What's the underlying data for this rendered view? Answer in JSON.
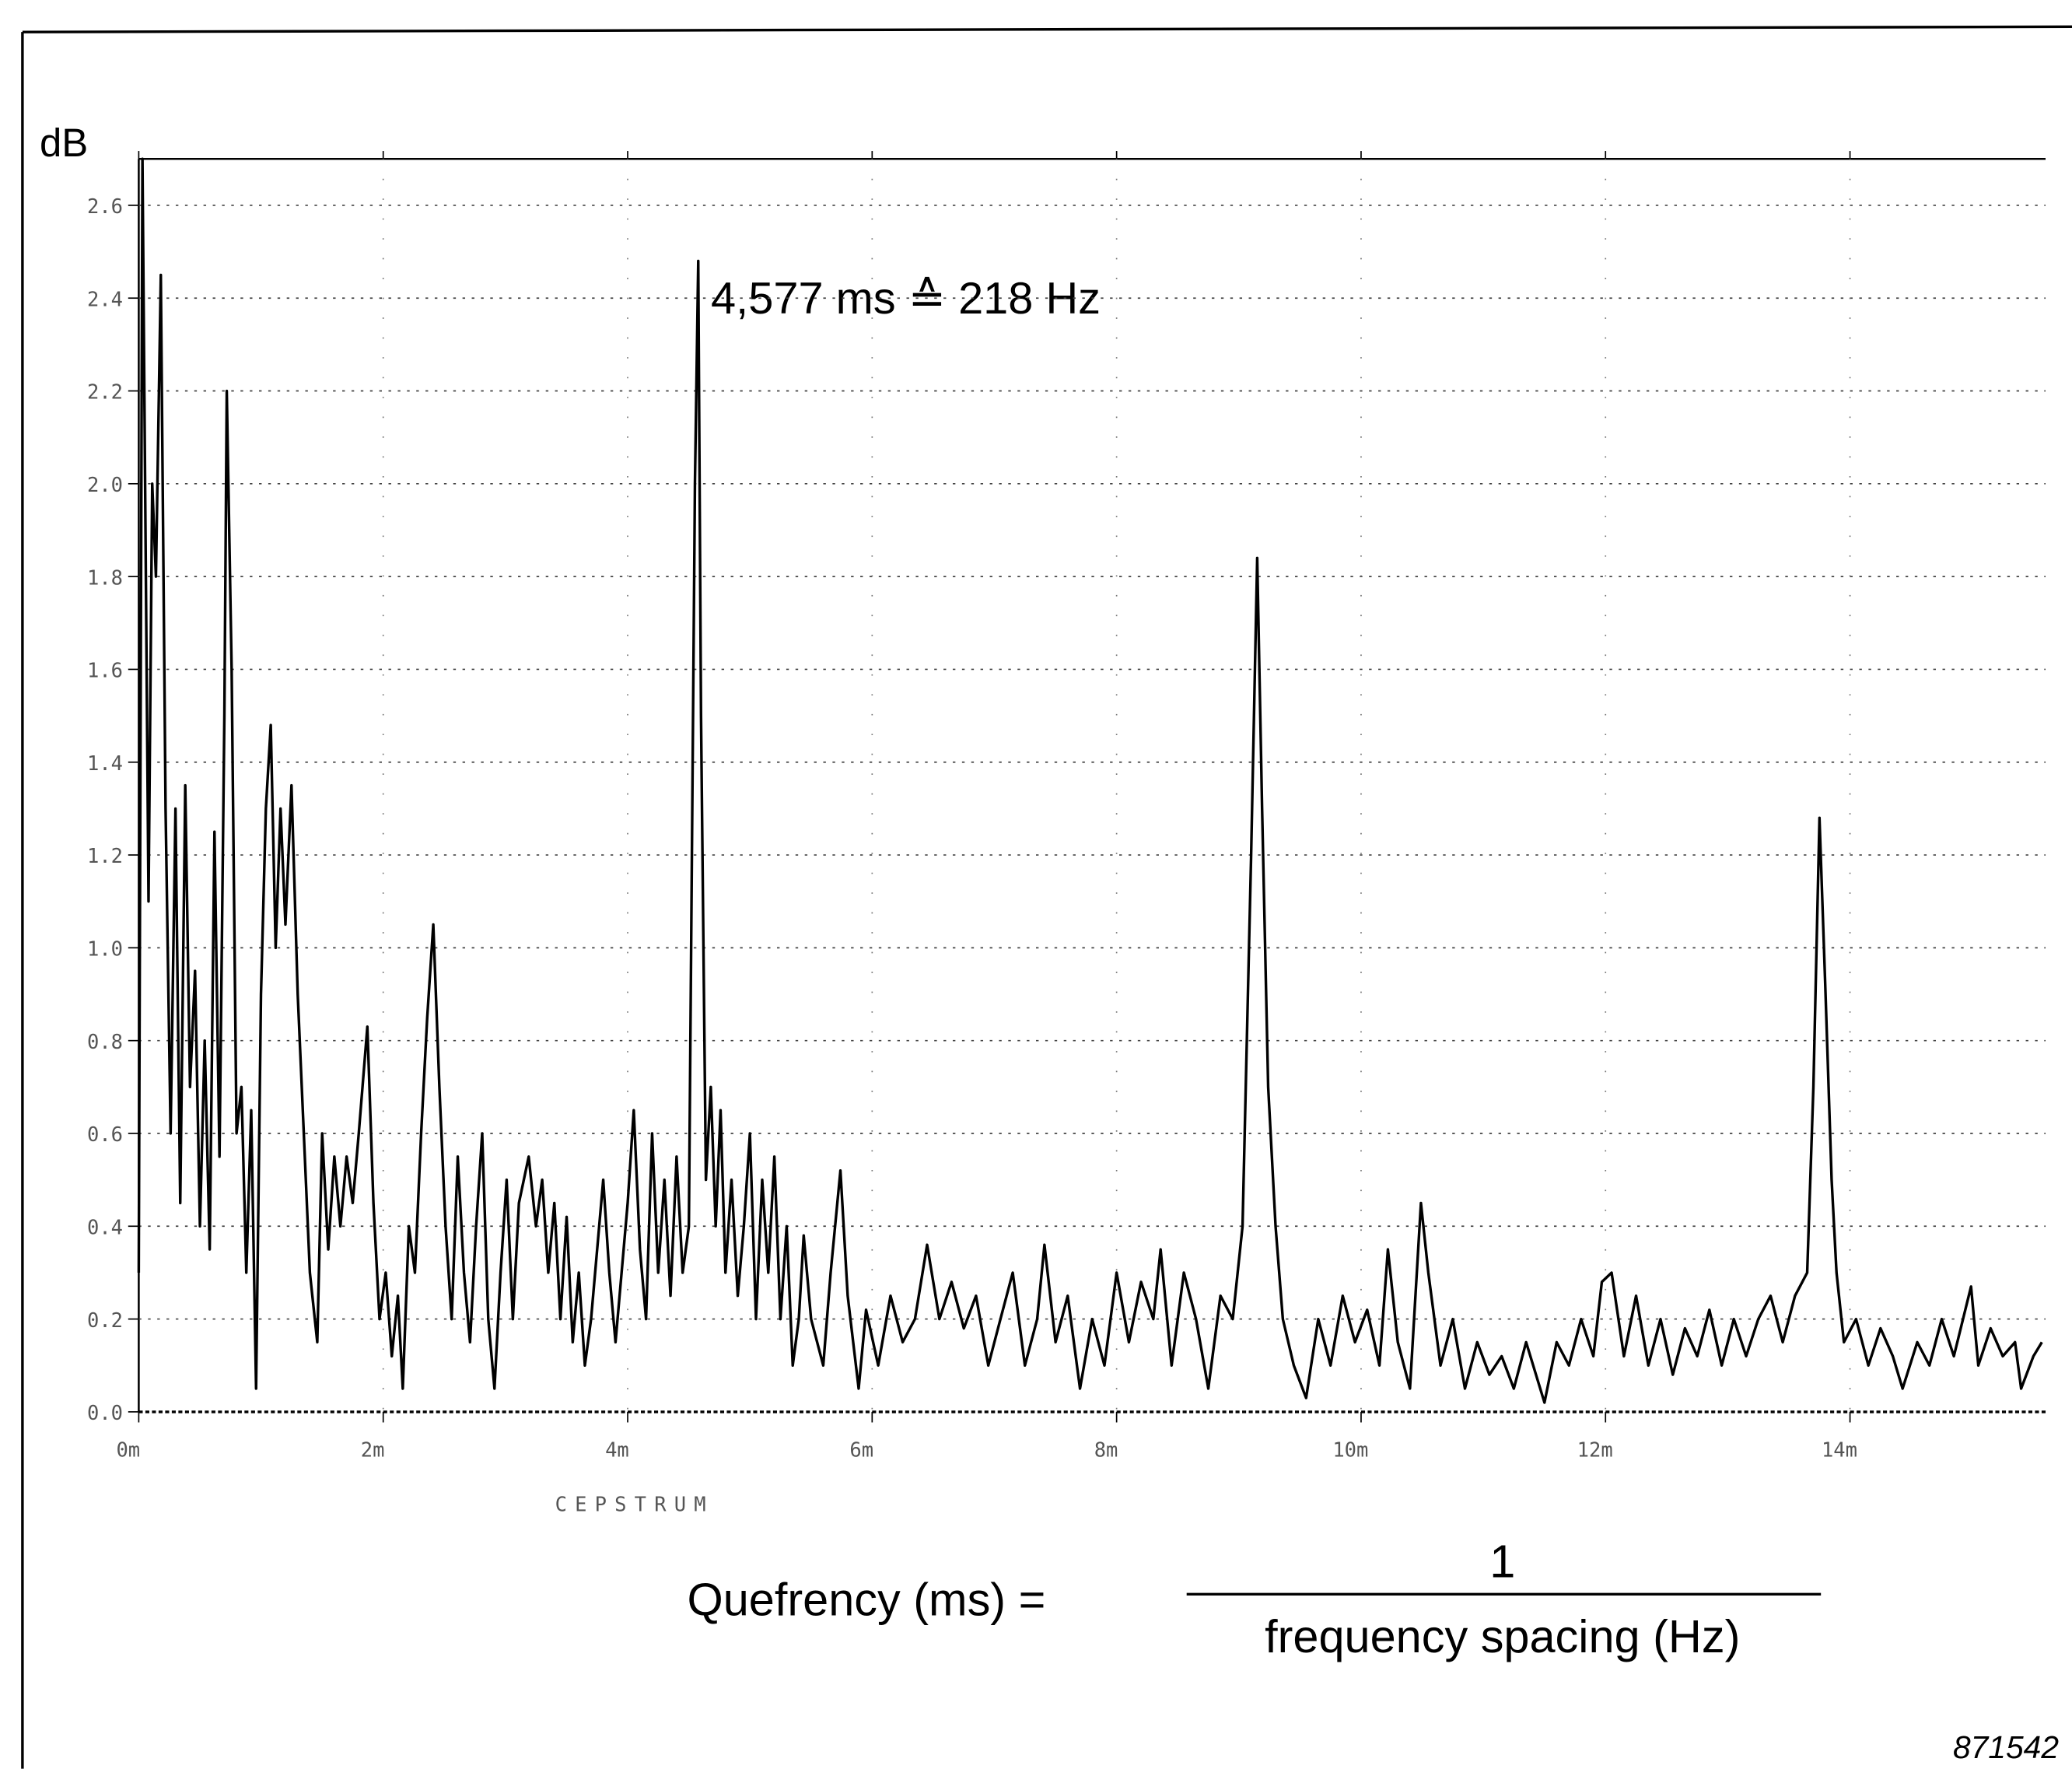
{
  "chart_data": {
    "type": "line",
    "y_axis_label": "dB",
    "x_axis_label": "CEPSTRUM",
    "annotation": "4,577 ms ≙ 218 Hz",
    "formula": {
      "lhs": "Quefrency (ms)  =",
      "numerator": "1",
      "denominator": "frequency spacing (Hz)"
    },
    "figure_id": "871542",
    "color": "#000000",
    "grid": true,
    "xlim": [
      0,
      15.6
    ],
    "ylim": [
      0,
      2.7
    ],
    "xticks": [
      {
        "value": 0,
        "label": "0m"
      },
      {
        "value": 2,
        "label": "2m"
      },
      {
        "value": 4,
        "label": "4m"
      },
      {
        "value": 6,
        "label": "6m"
      },
      {
        "value": 8,
        "label": "8m"
      },
      {
        "value": 10,
        "label": "10m"
      },
      {
        "value": 12,
        "label": "12m"
      },
      {
        "value": 14,
        "label": "14m"
      }
    ],
    "yticks": [
      {
        "value": 0,
        "label": "0.0"
      },
      0.2,
      0.4,
      0.6,
      0.8,
      {
        "value": 1,
        "label": "1.0"
      },
      1.2,
      1.4,
      1.6,
      1.8,
      {
        "value": 2,
        "label": "2.0"
      },
      2.2,
      2.4,
      2.6
    ],
    "x": [
      0,
      0.03,
      0.08,
      0.11,
      0.14,
      0.18,
      0.22,
      0.26,
      0.3,
      0.34,
      0.38,
      0.42,
      0.46,
      0.5,
      0.54,
      0.58,
      0.62,
      0.66,
      0.7,
      0.72,
      0.76,
      0.8,
      0.84,
      0.88,
      0.92,
      0.96,
      1.0,
      1.04,
      1.08,
      1.12,
      1.16,
      1.2,
      1.25,
      1.3,
      1.35,
      1.4,
      1.46,
      1.5,
      1.55,
      1.6,
      1.65,
      1.7,
      1.75,
      1.8,
      1.87,
      1.92,
      1.97,
      2.02,
      2.07,
      2.12,
      2.16,
      2.21,
      2.26,
      2.31,
      2.36,
      2.41,
      2.46,
      2.51,
      2.56,
      2.61,
      2.66,
      2.71,
      2.76,
      2.81,
      2.86,
      2.91,
      2.96,
      3.01,
      3.06,
      3.11,
      3.19,
      3.25,
      3.3,
      3.35,
      3.4,
      3.45,
      3.5,
      3.55,
      3.6,
      3.65,
      3.7,
      3.75,
      3.8,
      3.85,
      3.9,
      3.95,
      4.0,
      4.05,
      4.1,
      4.15,
      4.2,
      4.25,
      4.3,
      4.35,
      4.4,
      4.45,
      4.5,
      4.55,
      4.577,
      4.6,
      4.64,
      4.68,
      4.72,
      4.76,
      4.8,
      4.85,
      4.9,
      4.95,
      5.0,
      5.05,
      5.1,
      5.15,
      5.2,
      5.25,
      5.3,
      5.35,
      5.4,
      5.44,
      5.5,
      5.6,
      5.66,
      5.74,
      5.8,
      5.89,
      5.95,
      6.05,
      6.15,
      6.25,
      6.35,
      6.45,
      6.55,
      6.65,
      6.75,
      6.85,
      6.95,
      7.05,
      7.15,
      7.25,
      7.35,
      7.41,
      7.5,
      7.6,
      7.7,
      7.8,
      7.9,
      8.0,
      8.1,
      8.2,
      8.3,
      8.36,
      8.45,
      8.55,
      8.65,
      8.75,
      8.85,
      8.95,
      9.03,
      9.1,
      9.15,
      9.19,
      9.24,
      9.3,
      9.36,
      9.45,
      9.55,
      9.65,
      9.75,
      9.85,
      9.95,
      10.05,
      10.15,
      10.22,
      10.3,
      10.4,
      10.49,
      10.55,
      10.65,
      10.75,
      10.85,
      10.95,
      11.05,
      11.15,
      11.25,
      11.35,
      11.5,
      11.6,
      11.7,
      11.8,
      11.9,
      11.97,
      12.05,
      12.15,
      12.25,
      12.35,
      12.45,
      12.55,
      12.65,
      12.75,
      12.85,
      12.95,
      13.05,
      13.15,
      13.25,
      13.35,
      13.45,
      13.55,
      13.65,
      13.7,
      13.75,
      13.8,
      13.85,
      13.89,
      13.95,
      14.05,
      14.15,
      14.25,
      14.35,
      14.43,
      14.55,
      14.65,
      14.75,
      14.85,
      14.99,
      15.05,
      15.15,
      15.25,
      15.35,
      15.4,
      15.5,
      15.57
    ],
    "values": [
      0.3,
      2.7,
      1.1,
      2.0,
      1.8,
      2.45,
      1.3,
      0.6,
      1.3,
      0.45,
      1.35,
      0.7,
      0.95,
      0.4,
      0.8,
      0.35,
      1.25,
      0.55,
      1.5,
      2.2,
      1.6,
      0.6,
      0.7,
      0.3,
      0.65,
      0.05,
      0.9,
      1.3,
      1.48,
      1.0,
      1.3,
      1.05,
      1.35,
      0.9,
      0.6,
      0.3,
      0.15,
      0.6,
      0.35,
      0.55,
      0.4,
      0.55,
      0.45,
      0.6,
      0.83,
      0.45,
      0.2,
      0.3,
      0.12,
      0.25,
      0.05,
      0.4,
      0.3,
      0.6,
      0.85,
      1.05,
      0.7,
      0.4,
      0.2,
      0.55,
      0.3,
      0.15,
      0.4,
      0.6,
      0.2,
      0.05,
      0.3,
      0.5,
      0.2,
      0.45,
      0.55,
      0.4,
      0.5,
      0.3,
      0.45,
      0.2,
      0.42,
      0.15,
      0.3,
      0.1,
      0.2,
      0.35,
      0.5,
      0.3,
      0.15,
      0.3,
      0.45,
      0.65,
      0.35,
      0.2,
      0.6,
      0.3,
      0.5,
      0.25,
      0.55,
      0.3,
      0.4,
      2.0,
      2.48,
      1.5,
      0.5,
      0.7,
      0.4,
      0.65,
      0.3,
      0.5,
      0.25,
      0.4,
      0.6,
      0.2,
      0.5,
      0.3,
      0.55,
      0.2,
      0.4,
      0.1,
      0.2,
      0.38,
      0.2,
      0.1,
      0.3,
      0.52,
      0.25,
      0.05,
      0.22,
      0.1,
      0.25,
      0.15,
      0.2,
      0.36,
      0.2,
      0.28,
      0.18,
      0.25,
      0.1,
      0.2,
      0.3,
      0.1,
      0.2,
      0.36,
      0.15,
      0.25,
      0.05,
      0.2,
      0.1,
      0.3,
      0.15,
      0.28,
      0.2,
      0.35,
      0.1,
      0.3,
      0.2,
      0.05,
      0.25,
      0.2,
      0.4,
      1.2,
      1.84,
      1.3,
      0.7,
      0.4,
      0.2,
      0.1,
      0.03,
      0.2,
      0.1,
      0.25,
      0.15,
      0.22,
      0.1,
      0.35,
      0.15,
      0.05,
      0.45,
      0.3,
      0.1,
      0.2,
      0.05,
      0.15,
      0.08,
      0.12,
      0.05,
      0.15,
      0.02,
      0.15,
      0.1,
      0.2,
      0.12,
      0.28,
      0.3,
      0.12,
      0.25,
      0.1,
      0.2,
      0.08,
      0.18,
      0.12,
      0.22,
      0.1,
      0.2,
      0.12,
      0.2,
      0.25,
      0.15,
      0.25,
      0.3,
      0.7,
      1.28,
      0.9,
      0.5,
      0.3,
      0.15,
      0.2,
      0.1,
      0.18,
      0.12,
      0.05,
      0.15,
      0.1,
      0.2,
      0.12,
      0.27,
      0.1,
      0.18,
      0.12,
      0.15,
      0.05,
      0.12,
      0.15
    ]
  }
}
